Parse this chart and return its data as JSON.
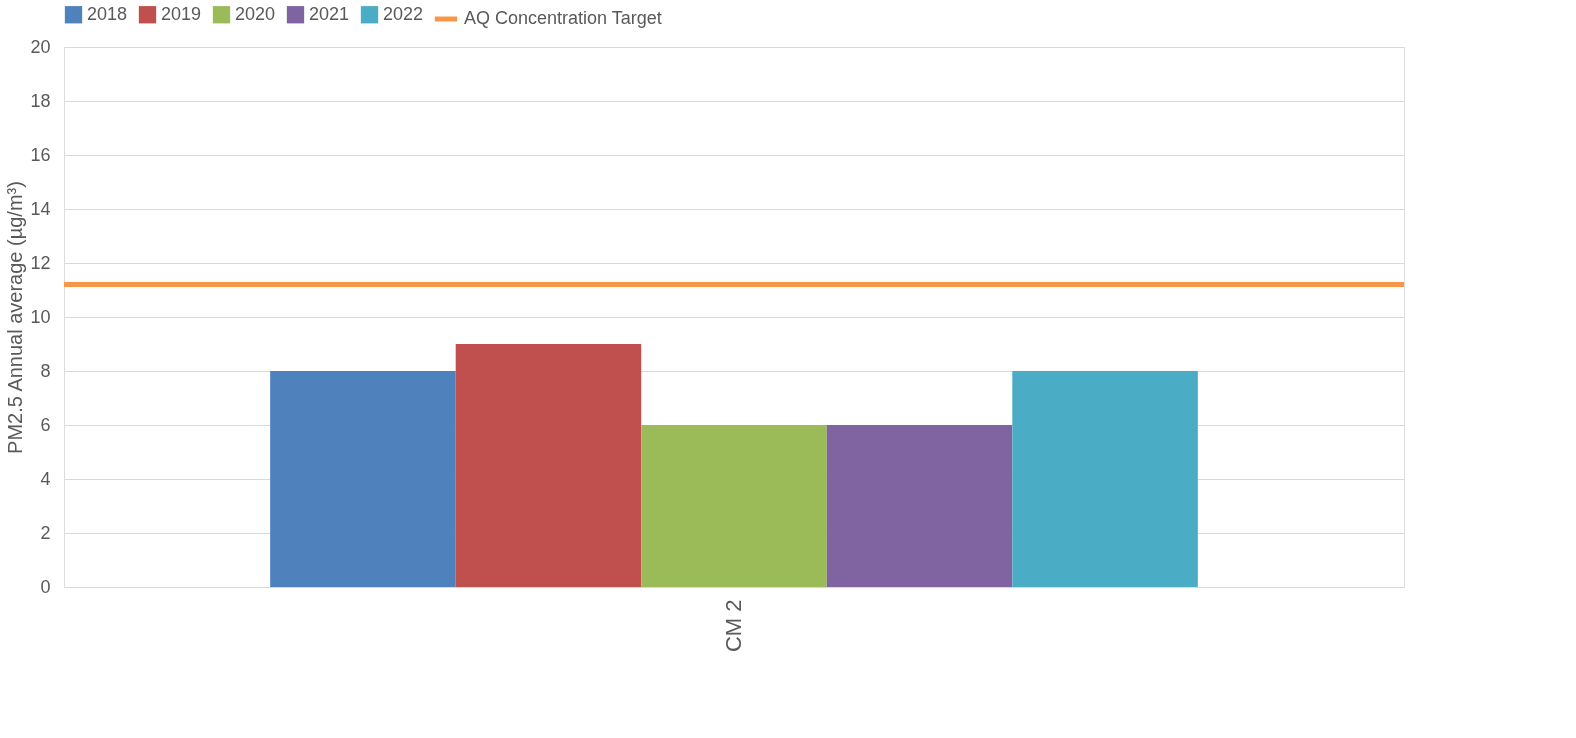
{
  "chart_data": {
    "type": "bar",
    "ylabel": "PM2.5 Annual average (µg/m³)",
    "categories": [
      "CM 2"
    ],
    "series": [
      {
        "name": "2018",
        "color": "#4f81bd",
        "values": [
          8
        ]
      },
      {
        "name": "2019",
        "color": "#c0504d",
        "values": [
          9
        ]
      },
      {
        "name": "2020",
        "color": "#9bbb59",
        "values": [
          6
        ]
      },
      {
        "name": "2021",
        "color": "#8064a2",
        "values": [
          6
        ]
      },
      {
        "name": "2022",
        "color": "#4bacc6",
        "values": [
          8
        ]
      }
    ],
    "ref_lines": [
      {
        "axis": "y",
        "value": 11.2,
        "label": "AQ Concentration Target",
        "color": "#f79646"
      }
    ],
    "ylim": [
      0,
      20
    ],
    "yticks": [
      0,
      2,
      4,
      6,
      8,
      10,
      12,
      14,
      16,
      18,
      20
    ],
    "grid": "y",
    "legend": "top"
  }
}
